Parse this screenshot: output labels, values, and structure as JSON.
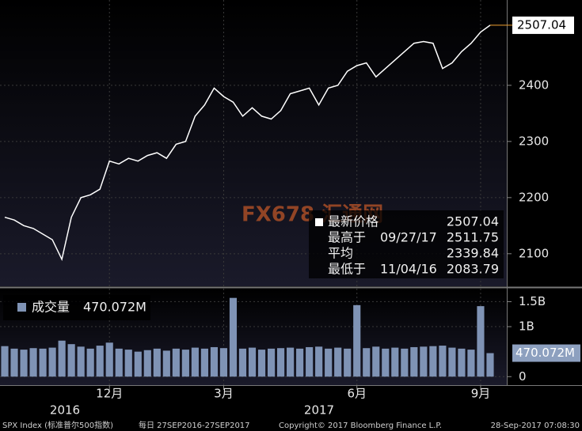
{
  "chart_data": [
    {
      "type": "line",
      "ylim": [
        2042,
        2552
      ],
      "yticks": [
        2100,
        2200,
        2300,
        2400
      ],
      "grid": true,
      "series": [
        {
          "name": "最新价格",
          "color": "#ffffff",
          "values": [
            2165,
            2160,
            2150,
            2145,
            2135,
            2125,
            2090,
            2165,
            2200,
            2205,
            2215,
            2265,
            2260,
            2270,
            2265,
            2275,
            2280,
            2270,
            2295,
            2300,
            2345,
            2365,
            2395,
            2380,
            2370,
            2345,
            2360,
            2345,
            2340,
            2355,
            2385,
            2390,
            2395,
            2365,
            2395,
            2400,
            2425,
            2435,
            2440,
            2415,
            2430,
            2445,
            2460,
            2475,
            2478,
            2475,
            2430,
            2440,
            2460,
            2475,
            2495,
            2507.04
          ]
        }
      ],
      "stats": [
        {
          "label": "最新价格",
          "value": 2507.04
        },
        {
          "label": "最高于",
          "date": "09/27/17",
          "value": 2511.75
        },
        {
          "label": "平均",
          "value": 2339.84
        },
        {
          "label": "最低于",
          "date": "11/04/16",
          "value": 2083.79
        }
      ],
      "watermark": "FX678 汇通网"
    },
    {
      "type": "bar",
      "ylim": [
        -170,
        1760
      ],
      "yticks": [
        0,
        {
          "value": 1000,
          "label": "1B"
        },
        {
          "value": 1500,
          "label": "1.5B"
        }
      ],
      "grid": true,
      "categories": [
        null,
        null,
        null,
        null,
        null,
        null,
        null,
        null,
        null,
        null,
        null,
        "12月",
        null,
        null,
        null,
        null,
        null,
        null,
        null,
        null,
        null,
        null,
        null,
        "3月",
        null,
        null,
        null,
        null,
        null,
        null,
        null,
        null,
        null,
        null,
        null,
        null,
        null,
        "6月",
        null,
        null,
        null,
        null,
        null,
        null,
        null,
        null,
        null,
        null,
        null,
        null,
        "9月",
        null
      ],
      "x_groups": [
        "2016",
        "2017"
      ],
      "series": [
        {
          "name": "成交量",
          "color": "#7f93b5",
          "values": [
            610,
            560,
            540,
            570,
            560,
            580,
            720,
            650,
            600,
            560,
            620,
            680,
            560,
            540,
            500,
            530,
            560,
            520,
            560,
            540,
            580,
            560,
            590,
            570,
            1575,
            560,
            580,
            540,
            560,
            570,
            580,
            560,
            590,
            600,
            560,
            580,
            560,
            1430,
            570,
            600,
            560,
            580,
            560,
            590,
            600,
            610,
            620,
            580,
            560,
            540,
            1410,
            470.072
          ],
          "last_label": "470.072M"
        }
      ]
    }
  ],
  "footer": {
    "security": "SPX Index (标准普尔500指数)",
    "period": "每日 27SEP2016-27SEP2017",
    "copyright": "Copyright© 2017 Bloomberg Finance L.P.",
    "timestamp": "28-Sep-2017 07:08:30"
  }
}
